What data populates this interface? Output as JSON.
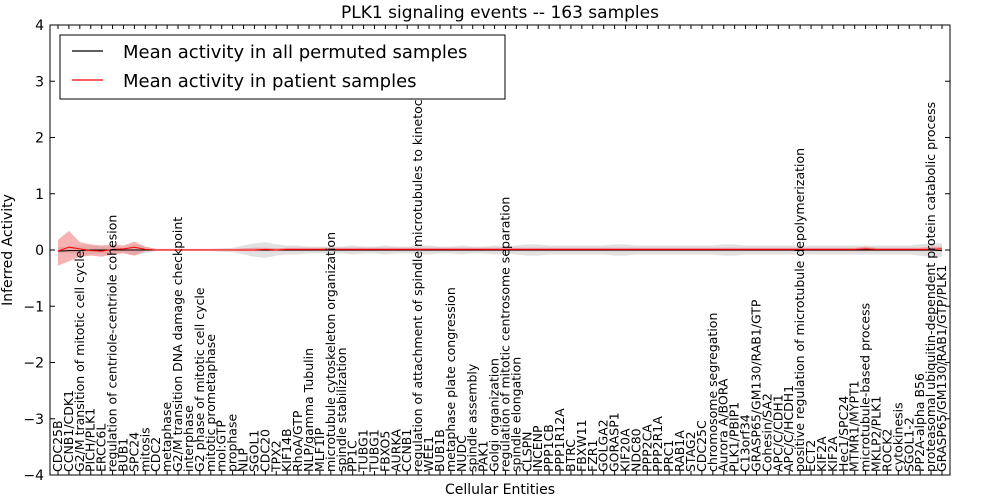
{
  "chart_data": {
    "type": "line",
    "title": "PLK1 signaling events -- 163 samples",
    "xlabel": "Cellular Entities",
    "ylabel": "Inferred Activity",
    "ylim": [
      -4,
      4
    ],
    "yticks": [
      -4,
      -3,
      -2,
      -1,
      0,
      1,
      2,
      3,
      4
    ],
    "ytick_labels": [
      "−4",
      "−3",
      "−2",
      "−1",
      "0",
      "1",
      "2",
      "3",
      "4"
    ],
    "grid": false,
    "legend": {
      "placement": "top-left",
      "entries": [
        {
          "label": "Mean activity in all permuted samples",
          "color": "#000000"
        },
        {
          "label": "Mean activity in patient samples",
          "color": "#ff0000"
        }
      ]
    },
    "categories": [
      "CDC25B",
      "CCNB1/CDK1",
      "G2/M transition of mitotic cell cycle",
      "PICH/PLK1",
      "ERCC6L",
      "regulation of centriole-centriole cohesion",
      "BUB1",
      "SPC24",
      "mitosis",
      "CDC2",
      "metaphase",
      "G2/M transition DNA damage checkpoint",
      "interphase",
      "G2 phase of mitotic cell cycle",
      "mitotic prometaphase",
      "mol:GTP",
      "prophase",
      "NLP",
      "SGOL1",
      "CDC20",
      "TPX2",
      "KIF14B",
      "RhoA/GTP",
      "NLP/gamma Tubulin",
      "MLF1IP",
      "microtubule cytoskeleton organization",
      "spindle stabilization",
      "PP1C",
      "TUBG1",
      "TUBG1",
      "FBXO5",
      "AURKA",
      "CCNB1",
      "regulation of attachment of spindle microtubules to kinetochore",
      "WEE1",
      "BUB1B",
      "metaphase plate congression",
      "NUDC",
      "spindle assembly",
      "PAK1",
      "Golgi organization",
      "regulation of mitotic centrosome separation",
      "spindle elongation",
      "CLSPN",
      "INCENP",
      "PPP1CB",
      "PPP1R12A",
      "BTRC",
      "FBXW11",
      "FZR1",
      "GOLGA2",
      "GORASP1",
      "KIF20A",
      "NDC80",
      "PPP2CA",
      "PPP2R1A",
      "PRC1",
      "RAB1A",
      "STAG2",
      "CDC25C",
      "chromosome segregation",
      "Aurora A/BORA",
      "PLK1/PBIP1",
      "C13orf34",
      "GRASP65/GM130/RAB1/GTP",
      "Cohesin/SA2",
      "APC/C/CDH1",
      "APC/C/HCDH1",
      "positive regulation of microtubule depolymerization",
      "ECT2",
      "KIF2A",
      "KIF2A",
      "Hec1/SPC24",
      "MTMR1/MYPT1",
      "microtubule-based process",
      "MKLP2/PLK1",
      "ROCK2",
      "cytokinesis",
      "SGOL1-2",
      "PP2A-alpha B56",
      "proteasomal ubiquitin-dependent protein catabolic process",
      "GRASP65/GM130/RAB1/GTP/PLK1"
    ],
    "series": [
      {
        "name": "Mean activity in all permuted samples",
        "color": "#000000",
        "values": [
          -0.02,
          -0.01,
          -0.01,
          0,
          0,
          0,
          0,
          0,
          0,
          0,
          0,
          0,
          0,
          0,
          0,
          0,
          0,
          0,
          0,
          0,
          0,
          0,
          0,
          0,
          0,
          0,
          0,
          0,
          0,
          0,
          0,
          0,
          0,
          0,
          0,
          0,
          0,
          0,
          0,
          0,
          0,
          0,
          0,
          0,
          0,
          0,
          0,
          0,
          0,
          0,
          0,
          0,
          0,
          0,
          0,
          0,
          0,
          0,
          0,
          0,
          0,
          0,
          0,
          0,
          0,
          0,
          0,
          0,
          0,
          0,
          0,
          0,
          0,
          0,
          0,
          0,
          0,
          0,
          0,
          0,
          0,
          -0.01
        ],
        "band_lower": [
          -0.05,
          -0.06,
          -0.08,
          -0.08,
          -0.06,
          -0.06,
          -0.04,
          -0.1,
          -0.06,
          -0.02,
          -0.02,
          -0.02,
          -0.02,
          -0.02,
          -0.02,
          -0.03,
          -0.04,
          -0.08,
          -0.12,
          -0.14,
          -0.1,
          -0.08,
          -0.08,
          -0.06,
          -0.06,
          -0.06,
          -0.06,
          -0.08,
          -0.06,
          -0.06,
          -0.08,
          -0.06,
          -0.06,
          -0.08,
          -0.08,
          -0.06,
          -0.06,
          -0.08,
          -0.06,
          -0.06,
          -0.08,
          -0.06,
          -0.08,
          -0.1,
          -0.1,
          -0.08,
          -0.08,
          -0.08,
          -0.08,
          -0.08,
          -0.08,
          -0.1,
          -0.1,
          -0.08,
          -0.08,
          -0.08,
          -0.08,
          -0.08,
          -0.08,
          -0.08,
          -0.08,
          -0.1,
          -0.1,
          -0.08,
          -0.08,
          -0.08,
          -0.08,
          -0.08,
          -0.08,
          -0.08,
          -0.08,
          -0.08,
          -0.08,
          -0.08,
          -0.08,
          -0.08,
          -0.08,
          -0.08,
          -0.08,
          -0.1,
          -0.12,
          -0.12
        ],
        "band_upper": [
          0.05,
          0.06,
          0.08,
          0.08,
          0.06,
          0.06,
          0.04,
          0.1,
          0.06,
          0.02,
          0.02,
          0.02,
          0.02,
          0.02,
          0.02,
          0.03,
          0.04,
          0.08,
          0.12,
          0.14,
          0.1,
          0.08,
          0.08,
          0.06,
          0.06,
          0.06,
          0.06,
          0.08,
          0.06,
          0.06,
          0.08,
          0.06,
          0.06,
          0.08,
          0.08,
          0.06,
          0.06,
          0.08,
          0.06,
          0.06,
          0.08,
          0.06,
          0.08,
          0.1,
          0.1,
          0.08,
          0.08,
          0.08,
          0.08,
          0.08,
          0.08,
          0.1,
          0.1,
          0.08,
          0.08,
          0.08,
          0.08,
          0.08,
          0.08,
          0.08,
          0.08,
          0.1,
          0.1,
          0.08,
          0.08,
          0.08,
          0.08,
          0.08,
          0.08,
          0.08,
          0.08,
          0.08,
          0.08,
          0.08,
          0.08,
          0.08,
          0.08,
          0.08,
          0.08,
          0.1,
          0.12,
          0.12
        ]
      },
      {
        "name": "Mean activity in patient samples",
        "color": "#ff0000",
        "values": [
          -0.02,
          0.05,
          0.02,
          -0.01,
          -0.02,
          0.01,
          0.02,
          0.05,
          0.01,
          0,
          0,
          0,
          0,
          0,
          0,
          0,
          0,
          0,
          0,
          0.01,
          0,
          0.01,
          0.01,
          0.01,
          0.01,
          0.01,
          0.01,
          0.01,
          0.01,
          0.01,
          0.01,
          0.01,
          0.01,
          0.01,
          0.01,
          0.01,
          0.01,
          0.01,
          0.01,
          0.01,
          0.01,
          0.01,
          0.01,
          0.01,
          0.01,
          0.01,
          0.01,
          0.01,
          0.01,
          0.01,
          0.01,
          0.01,
          0.01,
          0.01,
          0.01,
          0.01,
          0.01,
          0.01,
          0.01,
          0.01,
          0.01,
          0.01,
          0.01,
          0.01,
          0.01,
          0.01,
          0.01,
          0.01,
          0.01,
          0.01,
          0.01,
          0.01,
          0.01,
          0.01,
          0.02,
          0.01,
          0.01,
          0.01,
          0.01,
          0.01,
          0.01,
          0.02
        ],
        "band_lower": [
          -0.28,
          -0.2,
          -0.12,
          -0.1,
          -0.12,
          -0.08,
          -0.06,
          -0.1,
          -0.02,
          -0.01,
          -0.01,
          -0.01,
          -0.01,
          -0.01,
          -0.01,
          -0.01,
          -0.01,
          -0.02,
          -0.02,
          -0.02,
          -0.02,
          -0.02,
          -0.02,
          -0.02,
          -0.02,
          -0.02,
          -0.02,
          -0.02,
          -0.02,
          -0.02,
          -0.02,
          -0.02,
          -0.02,
          -0.02,
          -0.02,
          -0.02,
          -0.02,
          -0.02,
          -0.02,
          -0.02,
          -0.02,
          -0.02,
          -0.02,
          -0.02,
          -0.02,
          -0.02,
          -0.02,
          -0.02,
          -0.02,
          -0.02,
          -0.02,
          -0.02,
          -0.02,
          -0.02,
          -0.02,
          -0.02,
          -0.02,
          -0.02,
          -0.02,
          -0.02,
          -0.02,
          -0.02,
          -0.02,
          -0.02,
          -0.02,
          -0.02,
          -0.02,
          -0.02,
          -0.02,
          -0.02,
          -0.02,
          -0.02,
          -0.02,
          -0.02,
          -0.02,
          -0.02,
          -0.02,
          -0.02,
          -0.02,
          -0.02,
          -0.02,
          -0.02
        ],
        "band_upper": [
          0.18,
          0.34,
          0.14,
          0.1,
          0.08,
          0.1,
          0.08,
          0.15,
          0.06,
          0.02,
          0.02,
          0.02,
          0.02,
          0.02,
          0.02,
          0.02,
          0.02,
          0.03,
          0.04,
          0.04,
          0.03,
          0.04,
          0.04,
          0.04,
          0.04,
          0.04,
          0.04,
          0.04,
          0.04,
          0.04,
          0.04,
          0.04,
          0.04,
          0.04,
          0.04,
          0.04,
          0.04,
          0.04,
          0.04,
          0.04,
          0.04,
          0.04,
          0.04,
          0.04,
          0.04,
          0.04,
          0.04,
          0.04,
          0.04,
          0.04,
          0.04,
          0.04,
          0.04,
          0.04,
          0.04,
          0.04,
          0.04,
          0.04,
          0.04,
          0.04,
          0.04,
          0.04,
          0.04,
          0.04,
          0.04,
          0.04,
          0.04,
          0.04,
          0.04,
          0.04,
          0.04,
          0.04,
          0.04,
          0.04,
          0.06,
          0.04,
          0.04,
          0.04,
          0.04,
          0.04,
          0.06,
          0.06
        ]
      }
    ]
  }
}
